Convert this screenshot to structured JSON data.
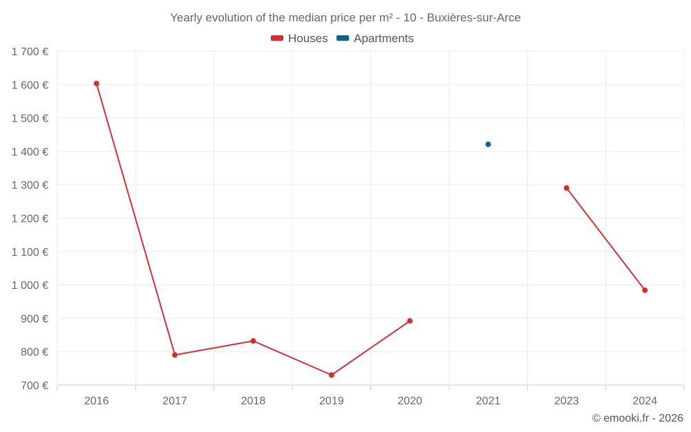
{
  "chart_data": {
    "type": "line",
    "title": "Yearly evolution of the median price per m² - 10 - Buxières-sur-Arce",
    "categories": [
      "2016",
      "2017",
      "2018",
      "2019",
      "2020",
      "2021",
      "2023",
      "2024"
    ],
    "ylim": [
      700,
      1700
    ],
    "yticks": [
      700,
      800,
      900,
      1000,
      1100,
      1200,
      1300,
      1400,
      1500,
      1600,
      1700
    ],
    "ytick_labels": [
      "700 €",
      "800 €",
      "900 €",
      "1 000 €",
      "1 100 €",
      "1 200 €",
      "1 300 €",
      "1 400 €",
      "1 500 €",
      "1 600 €",
      "1 700 €"
    ],
    "grid": true,
    "legend_position": "top-center",
    "series": [
      {
        "name": "Houses",
        "color": "#d32f2f",
        "values": [
          1603,
          790,
          832,
          730,
          892,
          null,
          1290,
          984
        ]
      },
      {
        "name": "Apartments",
        "color": "#0a6496",
        "values": [
          null,
          null,
          null,
          null,
          null,
          1421,
          null,
          null
        ]
      }
    ],
    "credit": "© emooki.fr - 2026"
  }
}
